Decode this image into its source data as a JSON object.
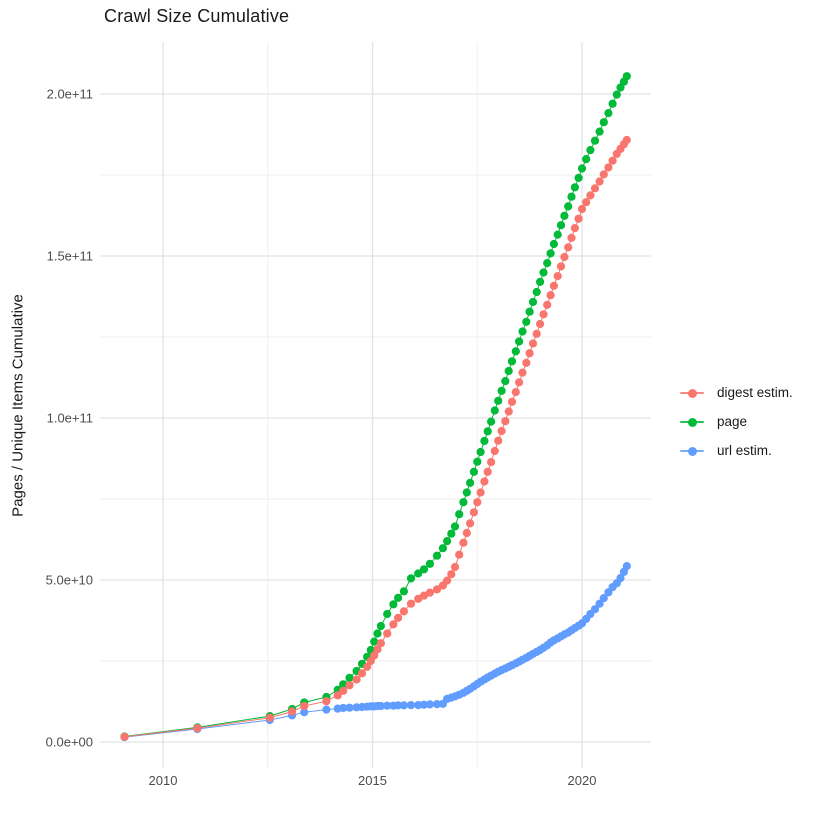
{
  "title": "Crawl Size Cumulative",
  "y_axis": {
    "label": "Pages / Unique Items Cumulative",
    "tick_labels": [
      "0.0e+00",
      "5.0e+10",
      "1.0e+11",
      "1.5e+11",
      "2.0e+11"
    ],
    "tick_values_e9": [
      0,
      50,
      100,
      150,
      200
    ],
    "minor_tick_values_e9": [
      25,
      75,
      125,
      175
    ]
  },
  "x_axis": {
    "tick_labels": [
      "2010",
      "2015",
      "2020"
    ],
    "tick_values": [
      2010,
      2015,
      2020
    ],
    "minor_tick_values": [
      2012.5,
      2017.5
    ]
  },
  "legend": {
    "items": [
      {
        "label": "digest estim.",
        "color": "#F8766D"
      },
      {
        "label": "page",
        "color": "#00BA38"
      },
      {
        "label": "url estim.",
        "color": "#619CFF"
      }
    ]
  },
  "colors": {
    "digest": "#F8766D",
    "page": "#00BA38",
    "url": "#619CFF",
    "grid_major": "#E3E3E3",
    "grid_minor": "#EFEFEF",
    "tick_text": "#4d4d4d",
    "text": "#1a1a1a",
    "background": "#ffffff"
  },
  "chart_data": {
    "type": "scatter",
    "title": "Crawl Size Cumulative",
    "xlabel": "",
    "ylabel": "Pages / Unique Items Cumulative",
    "xlim": [
      2008.5,
      2021.65
    ],
    "ylim_e9": [
      -8,
      217
    ],
    "grid": true,
    "legend_position": "right",
    "values_unit": "items, stored in billions (multiply by 1e9)",
    "x_years": [
      2009.08,
      2010.82,
      2012.55,
      2013.08,
      2013.37,
      2013.9,
      2014.17,
      2014.3,
      2014.45,
      2014.62,
      2014.75,
      2014.87,
      2014.96,
      2015.04,
      2015.12,
      2015.2,
      2015.35,
      2015.5,
      2015.61,
      2015.75,
      2015.92,
      2016.09,
      2016.23,
      2016.37,
      2016.54,
      2016.68,
      2016.78,
      2016.88,
      2016.97,
      2017.07,
      2017.17,
      2017.25,
      2017.33,
      2017.42,
      2017.5,
      2017.58,
      2017.67,
      2017.75,
      2017.83,
      2017.92,
      2018.0,
      2018.08,
      2018.17,
      2018.25,
      2018.33,
      2018.42,
      2018.5,
      2018.58,
      2018.67,
      2018.75,
      2018.83,
      2018.92,
      2019.0,
      2019.08,
      2019.17,
      2019.25,
      2019.33,
      2019.42,
      2019.5,
      2019.58,
      2019.67,
      2019.75,
      2019.83,
      2019.92,
      2020.0,
      2020.1,
      2020.2,
      2020.31,
      2020.42,
      2020.52,
      2020.63,
      2020.73,
      2020.83,
      2020.92,
      2021.0,
      2021.07
    ],
    "series": [
      {
        "name": "url estim.",
        "color": "#619CFF",
        "values_e9": [
          1.5,
          4.0,
          6.8,
          8.2,
          9.2,
          10.0,
          10.3,
          10.5,
          10.6,
          10.7,
          10.8,
          10.9,
          11.0,
          11.0,
          11.1,
          11.1,
          11.2,
          11.2,
          11.3,
          11.3,
          11.4,
          11.4,
          11.5,
          11.6,
          11.7,
          11.8,
          13.3,
          13.7,
          14.1,
          14.6,
          15.2,
          15.8,
          16.4,
          17.2,
          17.9,
          18.6,
          19.3,
          19.9,
          20.5,
          21.1,
          21.7,
          22.2,
          22.7,
          23.2,
          23.7,
          24.3,
          24.8,
          25.4,
          26.0,
          26.6,
          27.2,
          27.8,
          28.4,
          29.1,
          29.8,
          30.7,
          31.4,
          32.0,
          32.6,
          33.2,
          33.8,
          34.5,
          35.2,
          35.9,
          36.6,
          38.0,
          39.5,
          41.0,
          42.7,
          44.4,
          46.2,
          47.8,
          49.0,
          50.6,
          52.5,
          54.3
        ]
      },
      {
        "name": "page",
        "color": "#00BA38",
        "values_e9": [
          1.7,
          4.5,
          8.0,
          10.2,
          12.2,
          13.9,
          16.1,
          17.8,
          19.8,
          21.9,
          24.1,
          26.3,
          28.4,
          31.0,
          33.5,
          35.8,
          39.5,
          42.5,
          44.5,
          46.5,
          50.5,
          52.0,
          53.3,
          55.0,
          57.5,
          59.8,
          62.0,
          64.3,
          66.5,
          70.3,
          74.0,
          77.0,
          80.0,
          83.4,
          86.5,
          89.5,
          92.9,
          95.9,
          98.9,
          102.3,
          105.3,
          108.4,
          111.4,
          114.5,
          117.5,
          120.6,
          123.6,
          126.7,
          129.7,
          132.8,
          135.8,
          138.9,
          142.0,
          144.9,
          147.8,
          150.8,
          153.7,
          156.6,
          159.5,
          162.4,
          165.3,
          168.3,
          171.2,
          174.1,
          177.0,
          179.9,
          182.7,
          185.6,
          188.4,
          191.3,
          194.1,
          197.0,
          199.8,
          202.0,
          203.8,
          205.5
        ]
      },
      {
        "name": "digest estim.",
        "color": "#F8766D",
        "values_e9": [
          1.6,
          4.3,
          7.5,
          9.4,
          11.1,
          12.6,
          14.4,
          15.8,
          17.5,
          19.3,
          21.2,
          23.2,
          25.0,
          26.7,
          28.6,
          30.5,
          33.5,
          36.3,
          38.3,
          40.3,
          42.7,
          44.2,
          45.2,
          46.1,
          47.1,
          48.3,
          49.8,
          51.8,
          54.0,
          57.8,
          61.5,
          64.5,
          67.5,
          70.9,
          74.0,
          77.0,
          80.4,
          83.4,
          86.4,
          89.8,
          93.0,
          96.0,
          99.0,
          102.0,
          105.0,
          108.0,
          111.0,
          114.0,
          117.0,
          120.0,
          123.0,
          126.0,
          129.0,
          132.0,
          134.9,
          137.9,
          140.8,
          143.8,
          146.8,
          149.7,
          152.7,
          155.6,
          158.6,
          161.5,
          164.5,
          166.6,
          168.7,
          170.9,
          173.0,
          175.2,
          177.3,
          179.4,
          181.5,
          183.1,
          184.5,
          185.8
        ]
      }
    ]
  }
}
